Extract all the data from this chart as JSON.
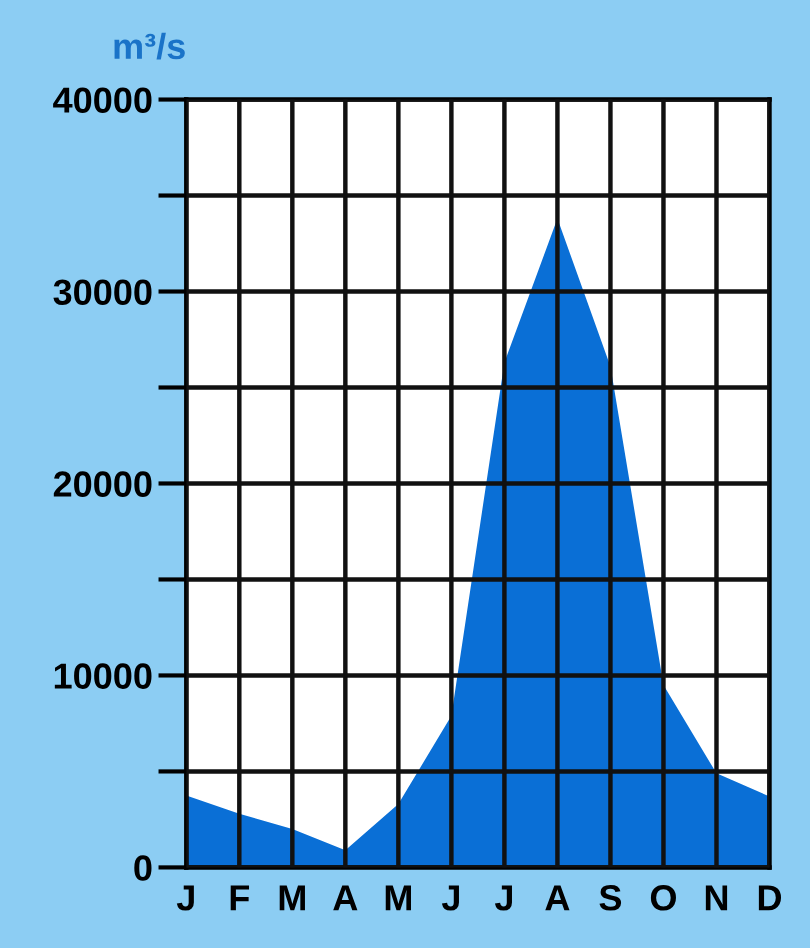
{
  "chart_data": {
    "type": "area",
    "ylabel": "m³/s",
    "categories": [
      "J",
      "F",
      "M",
      "A",
      "M",
      "J",
      "J",
      "A",
      "S",
      "O",
      "N",
      "D"
    ],
    "series": [
      {
        "color": "#0a6fd6",
        "values": [
          3750,
          2800,
          2000,
          900,
          3300,
          7900,
          26300,
          33800,
          26100,
          9500,
          4900,
          3700
        ]
      }
    ],
    "ylim": [
      0,
      40000
    ],
    "yticks": [
      0,
      {
        "value": 5000,
        "label": null
      },
      10000,
      {
        "value": 15000,
        "label": null
      },
      20000,
      {
        "value": 25000,
        "label": null
      },
      30000,
      {
        "value": 35000,
        "label": null
      },
      40000
    ],
    "grid": true
  }
}
